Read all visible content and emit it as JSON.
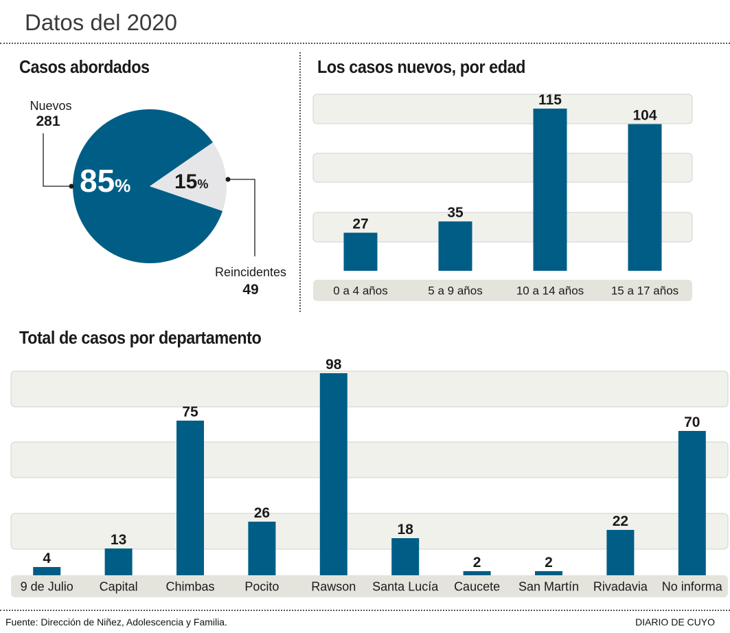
{
  "header": {
    "title": "Datos del 2020"
  },
  "footer": {
    "source": "Fuente: Dirección de Niñez, Adolescencia y Familia.",
    "brand": "DIARIO DE CUYO"
  },
  "colors": {
    "bar": "#005e86",
    "pie_secondary": "#e6e6e8",
    "band": "#f1f1ec",
    "axis_band": "#e4e4dc"
  },
  "chart_data": [
    {
      "type": "pie",
      "title": "Casos abordados",
      "slices": [
        {
          "label": "Nuevos",
          "value": 281,
          "percent_label": "85",
          "percent_sign": "%"
        },
        {
          "label": "Reincidentes",
          "value": 49,
          "percent_label": "15",
          "percent_sign": "%"
        }
      ]
    },
    {
      "type": "bar",
      "title": "Los casos nuevos, por edad",
      "categories": [
        "0 a 4 años",
        "5 a 9 años",
        "10 a 14 años",
        "15 a 17 años"
      ],
      "values": [
        27,
        35,
        115,
        104
      ],
      "value_labels": [
        "27",
        "35",
        "115",
        "104"
      ],
      "ylim": [
        0,
        130
      ],
      "xlabel": "",
      "ylabel": "",
      "grid": "alternating bands"
    },
    {
      "type": "bar",
      "title": "Total de casos por departamento",
      "categories": [
        "9 de Julio",
        "Capital",
        "Chimbas",
        "Pocito",
        "Rawson",
        "Santa Lucía",
        "Caucete",
        "San Martín",
        "Rivadavia",
        "No informa"
      ],
      "values": [
        4,
        13,
        75,
        26,
        98,
        18,
        2,
        2,
        22,
        70
      ],
      "value_labels": [
        "4",
        "13",
        "75",
        "26",
        "98",
        "18",
        "2",
        "2",
        "22",
        "70"
      ],
      "ylim": [
        0,
        100
      ],
      "xlabel": "",
      "ylabel": "",
      "grid": "alternating bands"
    }
  ]
}
